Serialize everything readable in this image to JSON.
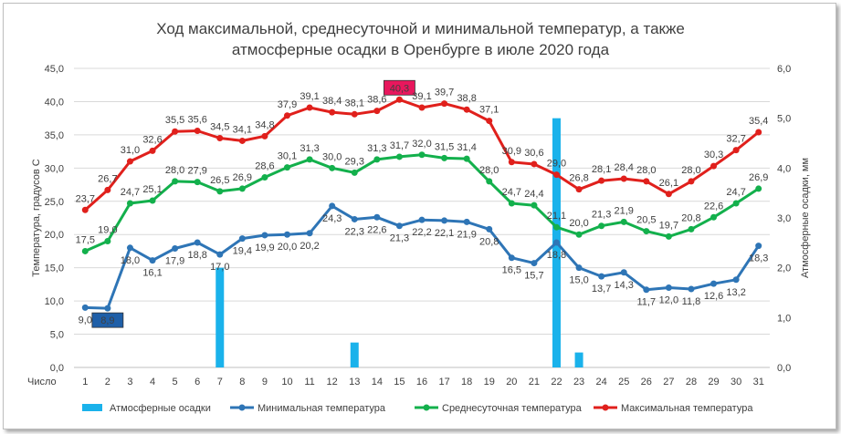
{
  "chart_data": {
    "type": "line",
    "title_line1": "Ход максимальной, среднесуточной и минимальной температур, а также",
    "title_line2": "атмосферные осадки в Оренбурге в июле 2020 года",
    "xlabel": "Число",
    "ylabel_left": "Температура, градусов С",
    "ylabel_right": "Атмосферные осадки, мм",
    "ylim_left": [
      0,
      45
    ],
    "ylim_right": [
      0,
      6
    ],
    "yticks_left": [
      "0,0",
      "5,0",
      "10,0",
      "15,0",
      "20,0",
      "25,0",
      "30,0",
      "35,0",
      "40,0",
      "45,0"
    ],
    "yticks_right": [
      "0,0",
      "1,0",
      "2,0",
      "3,0",
      "4,0",
      "5,0",
      "6,0"
    ],
    "categories": [
      "1",
      "2",
      "3",
      "4",
      "5",
      "6",
      "7",
      "8",
      "9",
      "10",
      "11",
      "12",
      "13",
      "14",
      "15",
      "16",
      "17",
      "18",
      "19",
      "20",
      "21",
      "22",
      "23",
      "24",
      "25",
      "26",
      "27",
      "28",
      "29",
      "30",
      "31"
    ],
    "grid": true,
    "legend_position": "bottom",
    "series": [
      {
        "name": "Атмосферные осадки",
        "kind": "bar",
        "axis": "right",
        "color": "#1ab2eb",
        "values": [
          0,
          0,
          0,
          0,
          0,
          0,
          2.0,
          0,
          0,
          0,
          0,
          0,
          0.5,
          0,
          0,
          0,
          0,
          0,
          0,
          0,
          0,
          5.0,
          0.3,
          0,
          0,
          0,
          0,
          0,
          0,
          0,
          0
        ]
      },
      {
        "name": "Минимальная температура",
        "kind": "line",
        "axis": "left",
        "color": "#2e75b6",
        "values": [
          9.0,
          8.9,
          18.0,
          16.1,
          17.9,
          18.8,
          17.0,
          19.4,
          19.9,
          20.0,
          20.2,
          24.3,
          22.3,
          22.6,
          21.3,
          22.2,
          22.1,
          21.9,
          20.8,
          16.5,
          15.7,
          18.8,
          15.0,
          13.7,
          14.3,
          11.7,
          12.0,
          11.8,
          12.6,
          13.2,
          18.3
        ],
        "labels": [
          "9,0",
          "8,9",
          "18,0",
          "16,1",
          "17,9",
          "18,8",
          "17,0",
          "19,4",
          "19,9",
          "20,0",
          "20,2",
          "24,3",
          "22,3",
          "22,6",
          "21,3",
          "22,2",
          "22,1",
          "21,9",
          "20,8",
          "16,5",
          "15,7",
          "18,8",
          "15,0",
          "13,7",
          "14,3",
          "11,7",
          "12,0",
          "11,8",
          "12,6",
          "13,2",
          "18,3"
        ]
      },
      {
        "name": "Среднесуточная температура",
        "kind": "line",
        "axis": "left",
        "color": "#13b04c",
        "values": [
          17.5,
          19.0,
          24.7,
          25.1,
          28.0,
          27.9,
          26.5,
          26.9,
          28.6,
          30.1,
          31.3,
          30.0,
          29.3,
          31.3,
          31.7,
          32.0,
          31.5,
          31.4,
          28.0,
          24.7,
          24.4,
          21.1,
          20.0,
          21.3,
          21.9,
          20.5,
          19.7,
          20.8,
          22.6,
          24.7,
          26.9
        ],
        "labels": [
          "17,5",
          "19,0",
          "24,7",
          "25,1",
          "28,0",
          "27,9",
          "26,5",
          "26,9",
          "28,6",
          "30,1",
          "31,3",
          "30,0",
          "29,3",
          "31,3",
          "31,7",
          "32,0",
          "31,5",
          "31,4",
          "28,0",
          "24,7",
          "24,4",
          "21,1",
          "20,0",
          "21,3",
          "21,9",
          "20,5",
          "19,7",
          "20,8",
          "22,6",
          "24,7",
          "26,9"
        ]
      },
      {
        "name": "Максимальная температура",
        "kind": "line",
        "axis": "left",
        "color": "#e0201c",
        "values": [
          23.7,
          26.7,
          31.0,
          32.6,
          35.5,
          35.6,
          34.5,
          34.1,
          34.8,
          37.9,
          39.1,
          38.4,
          38.1,
          38.6,
          40.3,
          39.1,
          39.7,
          38.8,
          37.1,
          30.9,
          30.6,
          29.0,
          26.8,
          28.1,
          28.4,
          28.0,
          26.1,
          28.0,
          30.3,
          32.7,
          35.4
        ],
        "labels": [
          "23,7",
          "26,7",
          "31,0",
          "32,6",
          "35,5",
          "35,6",
          "34,5",
          "34,1",
          "34,8",
          "37,9",
          "39,1",
          "38,4",
          "38,1",
          "38,6",
          "40,3",
          "39,1",
          "39,7",
          "38,8",
          "37,1",
          "30,9",
          "30,6",
          "29,0",
          "26,8",
          "28,1",
          "28,4",
          "28,0",
          "26,1",
          "28,0",
          "30,3",
          "32,7",
          "35,4"
        ]
      }
    ],
    "highlighted_labels": [
      {
        "series": "Минимальная температура",
        "day": "2",
        "fill": "#1f5fa8"
      },
      {
        "series": "Максимальная температура",
        "day": "15",
        "fill": "#e8175d"
      }
    ]
  }
}
